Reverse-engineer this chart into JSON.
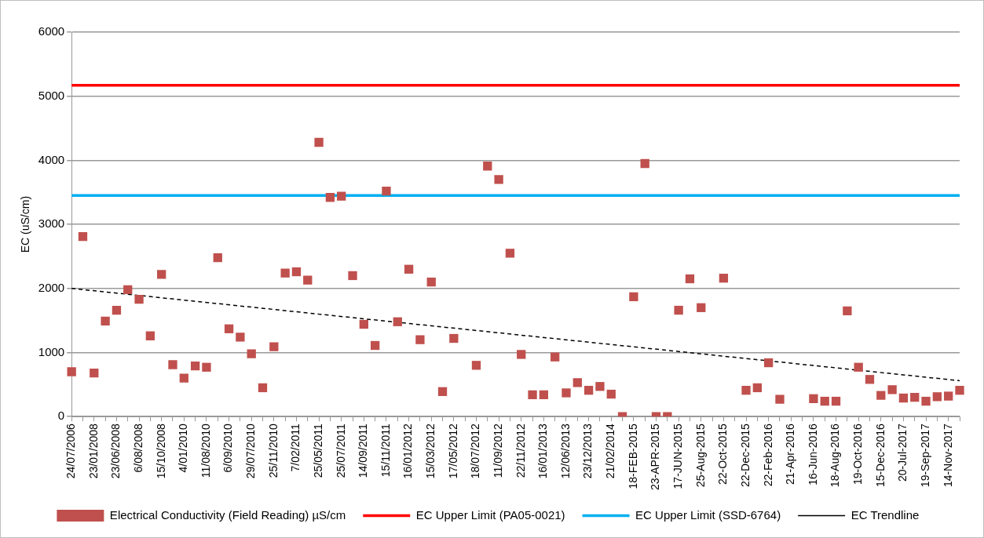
{
  "chart_data": {
    "type": "scatter",
    "ylabel": "EC (uS/cm)",
    "categories": [
      "24/07/2006",
      null,
      "23/01/2008",
      null,
      "23/06/2008",
      null,
      "6/08/2008",
      null,
      "15/10/2008",
      null,
      "4/01/2010",
      null,
      "11/08/2010",
      null,
      "6/09/2010",
      null,
      "29/07/2010",
      null,
      "25/11/2010",
      null,
      "7/02/2011",
      null,
      "25/05/2011",
      null,
      "25/07/2011",
      null,
      "14/09/2011",
      null,
      "15/11/2011",
      null,
      "16/01/2012",
      null,
      "15/03/2012",
      null,
      "17/05/2012",
      null,
      "18/07/2012",
      null,
      "11/09/2012",
      null,
      "22/11/2012",
      null,
      "16/01/2013",
      null,
      "12/06/2013",
      null,
      "23/12/2013",
      null,
      "21/02/2014",
      null,
      "18-FEB-2015",
      null,
      "23-APR-2015",
      null,
      "17-JUN-2015",
      null,
      "25-Aug-2015",
      null,
      "22-Oct-2015",
      null,
      "22-Dec-2015",
      null,
      "22-Feb-2016",
      null,
      "21-Apr-2016",
      null,
      "16-Jun-2016",
      null,
      "18-Aug-2016",
      null,
      "19-Oct-2016",
      null,
      "15-Dec-2016",
      null,
      "20-Jul-2017",
      null,
      "19-Sep-2017",
      null,
      "14-Nov-2017",
      null
    ],
    "series": [
      {
        "name": "Electrical Conductivity (Field Reading) µS/cm",
        "color": "#c0504d",
        "values": [
          700,
          2810,
          680,
          1490,
          1660,
          1980,
          1830,
          1260,
          2220,
          810,
          600,
          790,
          770,
          2480,
          1370,
          1240,
          980,
          450,
          1090,
          2240,
          2260,
          2130,
          4280,
          3420,
          3440,
          2200,
          1440,
          1110,
          3520,
          1480,
          2300,
          1200,
          2100,
          390,
          1220,
          null,
          800,
          3910,
          3700,
          2550,
          970,
          340,
          340,
          930,
          370,
          530,
          410,
          470,
          350,
          0,
          1870,
          3950,
          0,
          0,
          1660,
          2150,
          1700,
          null,
          2160,
          null,
          410,
          450,
          840,
          270,
          null,
          null,
          280,
          240,
          240,
          1650,
          770,
          580,
          330,
          420,
          290,
          300,
          240,
          310,
          320,
          410
        ]
      },
      {
        "name": "EC Upper Limit (PA05-0021)",
        "type": "line",
        "color": "#ff0000",
        "line_style": "solid",
        "marker": "none",
        "values": [
          5170,
          null,
          null,
          null,
          null,
          null,
          null,
          null,
          null,
          null,
          null,
          null,
          null,
          null,
          null,
          null,
          null,
          null,
          null,
          null,
          null,
          null,
          null,
          null,
          null,
          null,
          null,
          null,
          null,
          null,
          null,
          null,
          null,
          null,
          null,
          null,
          null,
          null,
          null,
          null,
          null,
          null,
          null,
          null,
          null,
          null,
          null,
          null,
          null,
          null,
          null,
          null,
          null,
          null,
          null,
          null,
          null,
          null,
          null,
          null,
          null,
          null,
          null,
          null,
          null,
          null,
          null,
          null,
          null,
          null,
          null,
          null,
          null,
          null,
          null,
          null,
          null,
          null,
          null,
          5170
        ]
      },
      {
        "name": "EC Upper Limit (SSD-6764)",
        "type": "line",
        "color": "#00b0f0",
        "line_style": "solid",
        "marker": "none",
        "values": [
          3450,
          null,
          null,
          null,
          null,
          null,
          null,
          null,
          null,
          null,
          null,
          null,
          null,
          null,
          null,
          null,
          null,
          null,
          null,
          null,
          null,
          null,
          null,
          null,
          null,
          null,
          null,
          null,
          null,
          null,
          null,
          null,
          null,
          null,
          null,
          null,
          null,
          null,
          null,
          null,
          null,
          null,
          null,
          null,
          null,
          null,
          null,
          null,
          null,
          null,
          null,
          null,
          null,
          null,
          null,
          null,
          null,
          null,
          null,
          null,
          null,
          null,
          null,
          null,
          null,
          null,
          null,
          null,
          null,
          null,
          null,
          null,
          null,
          null,
          null,
          null,
          null,
          null,
          null,
          3450
        ]
      },
      {
        "name": "EC Trendline",
        "type": "line",
        "color": "#000000",
        "line_style": "dashed",
        "marker": "none",
        "values": [
          2000,
          null,
          null,
          null,
          null,
          null,
          null,
          null,
          null,
          null,
          null,
          null,
          null,
          null,
          null,
          null,
          null,
          null,
          null,
          null,
          null,
          null,
          null,
          null,
          null,
          null,
          null,
          null,
          null,
          null,
          null,
          null,
          null,
          null,
          null,
          null,
          null,
          null,
          null,
          null,
          null,
          null,
          null,
          null,
          null,
          null,
          null,
          null,
          null,
          null,
          null,
          null,
          null,
          null,
          null,
          null,
          null,
          null,
          null,
          null,
          null,
          null,
          null,
          null,
          null,
          null,
          null,
          null,
          null,
          null,
          null,
          null,
          null,
          null,
          null,
          null,
          null,
          null,
          null,
          560
        ]
      }
    ],
    "ylim": [
      0,
      6000
    ],
    "yticks": [
      0,
      1000,
      2000,
      3000,
      4000,
      5000,
      6000
    ],
    "grid": "y",
    "legend": "bottom",
    "marker": "square"
  }
}
